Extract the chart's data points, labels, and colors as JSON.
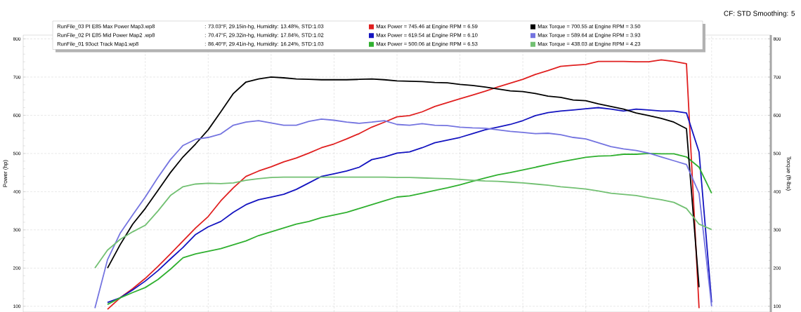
{
  "chart_data": {
    "type": "line",
    "subtitle": "CF: STD Smoothing: 5",
    "ylabel": "Power (hp)",
    "y2label": "Torque (ft-lbs)",
    "annotations": [
      "RunFile_03 PI E85 Max Power Map3.wp8",
      ": 73.03°F, 29.15in-hg, Humidity: 13.48%, STD:1.03",
      "RunFile_02 PI E85 Mid Power Map2 .wp8",
      ": 70.47°F, 29.32in-hg, Humidity: 17.84%, STD:1.02",
      "RunFile_01 93oct Track Map1.wp8",
      ": 86.40°F, 29.41in-hg, Humidity: 16.24%, STD:1.03"
    ],
    "categories": [
      null,
      null,
      null,
      null,
      null,
      null,
      null,
      null,
      null,
      null,
      null,
      null,
      null,
      null,
      null,
      null,
      null,
      null,
      null,
      null,
      null,
      null,
      null,
      null,
      null,
      null,
      null,
      null,
      null,
      null,
      null,
      null,
      null,
      null,
      null,
      null,
      null,
      null,
      null,
      null,
      null,
      null,
      null,
      null,
      null,
      null,
      null,
      null,
      null,
      null
    ],
    "series": [
      {
        "name": "Max Power = 745.46 at Engine RPM = 6.59",
        "color": "#e02020",
        "values": [
          null,
          92,
          122,
          146,
          173,
          204,
          237,
          271,
          305,
          335,
          376,
          410,
          440,
          454,
          465,
          478,
          488,
          501,
          515,
          525,
          538,
          552,
          569,
          582,
          596,
          599,
          609,
          623,
          633,
          643,
          653,
          663,
          674,
          684,
          694,
          707,
          717,
          728,
          731,
          733,
          741,
          741,
          741,
          740,
          740,
          745,
          741,
          735,
          95,
          null
        ]
      },
      {
        "name": "Max Torque = 700.55 at Engine RPM = 3.50",
        "color": "#000000",
        "axis": "y2",
        "values": [
          null,
          200,
          261,
          315,
          356,
          403,
          450,
          491,
          525,
          562,
          609,
          657,
          687,
          695,
          700,
          698,
          695,
          694,
          693,
          693,
          693,
          694,
          695,
          693,
          690,
          689,
          688,
          686,
          685,
          681,
          678,
          674,
          669,
          664,
          662,
          657,
          650,
          647,
          640,
          638,
          630,
          623,
          616,
          606,
          599,
          592,
          582,
          565,
          150,
          null
        ]
      },
      {
        "name": "Max Power = 619.54 at Engine RPM = 6.10",
        "color": "#1414c0",
        "values": [
          null,
          110,
          122,
          143,
          166,
          193,
          224,
          254,
          288,
          308,
          322,
          346,
          366,
          379,
          386,
          393,
          406,
          423,
          440,
          447,
          454,
          464,
          484,
          491,
          501,
          504,
          515,
          528,
          535,
          542,
          552,
          562,
          569,
          576,
          586,
          599,
          607,
          611,
          614,
          617,
          620,
          616,
          611,
          616,
          614,
          611,
          611,
          606,
          504,
          110
        ]
      },
      {
        "name": "Max Torque = 589.64 at Engine RPM = 3.93",
        "color": "#7474e0",
        "axis": "y2",
        "values": [
          95,
          222,
          291,
          339,
          386,
          437,
          484,
          521,
          537,
          542,
          551,
          574,
          582,
          586,
          580,
          574,
          574,
          584,
          590,
          587,
          582,
          579,
          582,
          586,
          576,
          574,
          578,
          574,
          573,
          569,
          567,
          566,
          562,
          558,
          555,
          552,
          553,
          549,
          542,
          538,
          528,
          518,
          512,
          508,
          501,
          491,
          481,
          471,
          396,
          100
        ]
      },
      {
        "name": "Max Power = 500.06 at Engine RPM = 6.53",
        "color": "#30b030",
        "values": [
          null,
          105,
          122,
          136,
          149,
          170,
          197,
          227,
          237,
          244,
          251,
          261,
          271,
          285,
          295,
          305,
          315,
          322,
          332,
          339,
          346,
          356,
          366,
          376,
          386,
          389,
          396,
          403,
          410,
          418,
          427,
          436,
          444,
          450,
          457,
          464,
          471,
          478,
          484,
          490,
          493,
          494,
          498,
          498,
          500,
          499,
          499,
          491,
          464,
          396
        ]
      },
      {
        "name": "Max Torque = 438.03 at Engine RPM = 4.23",
        "color": "#72c072",
        "axis": "y2",
        "values": [
          200,
          247,
          275,
          295,
          312,
          349,
          390,
          413,
          420,
          422,
          421,
          423,
          430,
          434,
          437,
          438,
          438,
          438,
          438,
          438,
          438,
          438,
          438,
          438,
          437,
          437,
          436,
          435,
          434,
          432,
          430,
          428,
          427,
          425,
          423,
          420,
          417,
          413,
          410,
          407,
          402,
          396,
          393,
          390,
          384,
          379,
          372,
          356,
          315,
          301
        ]
      }
    ],
    "ylim": [
      85,
      810
    ],
    "yticks": [
      100,
      200,
      300,
      400,
      500,
      600,
      700,
      800
    ],
    "y2lim": [
      85,
      810
    ],
    "y2ticks": [
      100,
      200,
      300,
      400,
      500,
      600,
      700,
      800
    ],
    "grid": true,
    "legend": "top",
    "tick_labels": "y",
    "marker": "none",
    "line_style": "solid"
  }
}
